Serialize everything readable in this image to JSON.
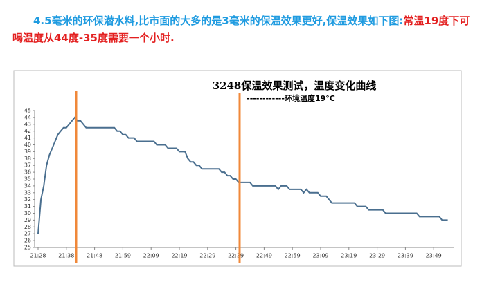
{
  "heading": {
    "blue": "4.5毫米的环保潜水料,比市面的大多的是3毫米的保温效果更好,保温效果如下图:",
    "red": "常温19度下可喝温度从44度-35度需要一个小时."
  },
  "chart_data": {
    "type": "line",
    "title": "3248保温效果测试，温度变化曲线",
    "subtitle": "------------环境温度19°C",
    "color": "#4a6f8f",
    "categories": [
      "21:28",
      null,
      null,
      null,
      null,
      null,
      null,
      null,
      null,
      null,
      "21:38",
      null,
      null,
      null,
      null,
      null,
      null,
      null,
      null,
      null,
      "21:48",
      null,
      null,
      null,
      null,
      null,
      null,
      null,
      null,
      null,
      "21:59",
      null,
      null,
      null,
      null,
      null,
      null,
      null,
      null,
      null,
      "22:09",
      null,
      null,
      null,
      null,
      null,
      null,
      null,
      null,
      null,
      "22:19",
      null,
      null,
      null,
      null,
      null,
      null,
      null,
      null,
      null,
      "22:29",
      null,
      null,
      null,
      null,
      null,
      null,
      null,
      null,
      null,
      "22:39",
      null,
      null,
      null,
      null,
      null,
      null,
      null,
      null,
      null,
      "22:49",
      null,
      null,
      null,
      null,
      null,
      null,
      null,
      null,
      null,
      "22:59",
      null,
      null,
      null,
      null,
      null,
      null,
      null,
      null,
      null,
      "23:09",
      null,
      null,
      null,
      null,
      null,
      null,
      null,
      null,
      null,
      "23:19",
      null,
      null,
      null,
      null,
      null,
      null,
      null,
      null,
      null,
      "23:29",
      null,
      null,
      null,
      null,
      null,
      null,
      null,
      null,
      null,
      "23:39",
      null,
      null,
      null,
      null,
      null,
      null,
      null,
      null,
      null,
      "23:49",
      null,
      null,
      null,
      null,
      null
    ],
    "values": [
      27,
      32,
      34,
      37,
      38.5,
      39.5,
      40.5,
      41.5,
      42,
      42.5,
      42.5,
      43,
      43.5,
      44,
      43.5,
      43.5,
      43,
      42.5,
      42.5,
      42.5,
      42.5,
      42.5,
      42.5,
      42.5,
      42.5,
      42.5,
      42.5,
      42.5,
      42,
      42,
      41.5,
      41.5,
      41,
      41,
      41,
      40.5,
      40.5,
      40.5,
      40.5,
      40.5,
      40.5,
      40.5,
      40,
      40,
      40,
      40,
      39.5,
      39.5,
      39.5,
      39.5,
      39,
      39,
      39,
      38,
      37.5,
      37.5,
      37,
      37,
      36.5,
      36.5,
      36.5,
      36.5,
      36.5,
      36.5,
      36.5,
      36,
      36,
      35.5,
      35.5,
      35,
      35,
      34.5,
      34.5,
      34.5,
      34.5,
      34.5,
      34,
      34,
      34,
      34,
      34,
      34,
      34,
      34,
      34,
      33.5,
      34,
      34,
      34,
      33.5,
      33.5,
      33.5,
      33.5,
      33.5,
      33,
      33.5,
      33,
      33,
      33,
      33,
      32.5,
      32.5,
      32.5,
      32,
      31.5,
      31.5,
      31.5,
      31.5,
      31.5,
      31.5,
      31.5,
      31.5,
      31.5,
      31,
      31,
      31,
      31,
      30.5,
      30.5,
      30.5,
      30.5,
      30.5,
      30.5,
      30,
      30,
      30,
      30,
      30,
      30,
      30,
      30,
      30,
      30,
      30,
      30,
      29.5,
      29.5,
      29.5,
      29.5,
      29.5,
      29.5,
      29.5,
      29.5,
      29,
      29,
      29
    ],
    "ylim": [
      25,
      45
    ],
    "yticks": [
      25,
      26,
      27,
      28,
      29,
      30,
      31,
      32,
      33,
      34,
      35,
      36,
      37,
      38,
      39,
      40,
      41,
      42,
      43,
      44,
      45
    ]
  }
}
